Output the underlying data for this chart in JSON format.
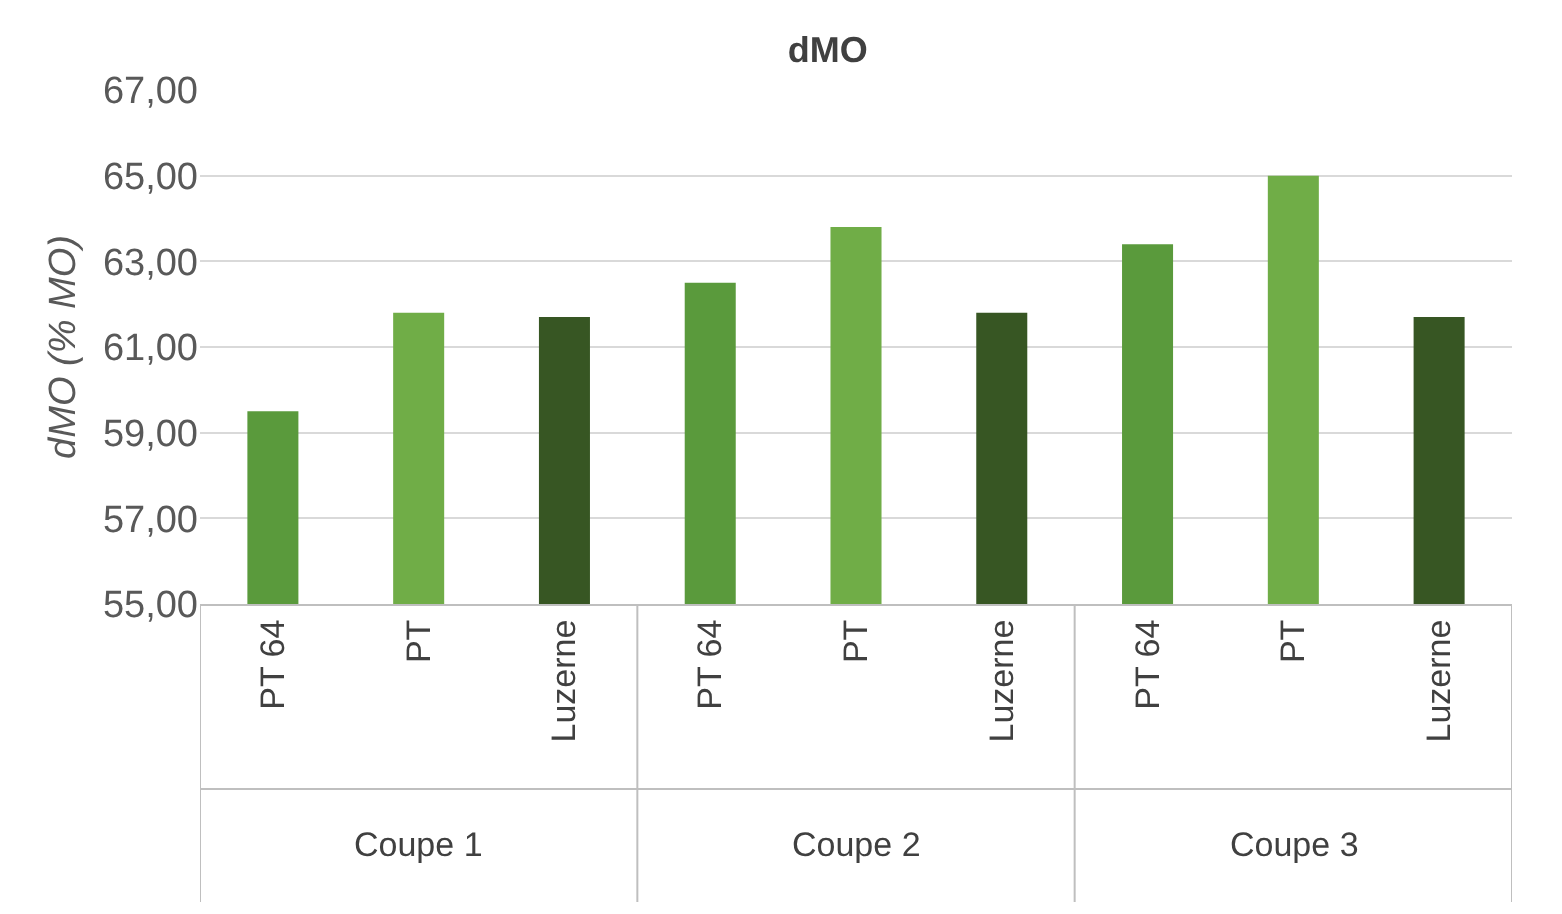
{
  "chart_data": {
    "type": "bar",
    "title": "dMO",
    "ylabel": "dMO (% MO)",
    "categories": [
      "PT 64",
      "PT",
      "Luzerne",
      "PT 64",
      "PT",
      "Luzerne",
      "PT 64",
      "PT",
      "Luzerne"
    ],
    "values": [
      59.5,
      61.8,
      61.7,
      62.5,
      63.8,
      61.8,
      63.4,
      65.0,
      61.7
    ],
    "colors": [
      "#5a9a3c",
      "#70ad47",
      "#375623",
      "#5a9a3c",
      "#70ad47",
      "#375623",
      "#5a9a3c",
      "#70ad47",
      "#375623"
    ],
    "annotations": [
      "Coupe 1",
      "Coupe 2",
      "Coupe 3"
    ],
    "ylim": [
      55,
      67
    ],
    "yticks": [
      {
        "value": 55,
        "label": "55,00"
      },
      {
        "value": 57,
        "label": "57,00"
      },
      {
        "value": 59,
        "label": "59,00"
      },
      {
        "value": 61,
        "label": "61,00"
      },
      {
        "value": 63,
        "label": "63,00"
      },
      {
        "value": 65,
        "label": "65,00"
      },
      {
        "value": 67,
        "label": "67,00"
      }
    ],
    "grid": "y",
    "legend": false
  }
}
